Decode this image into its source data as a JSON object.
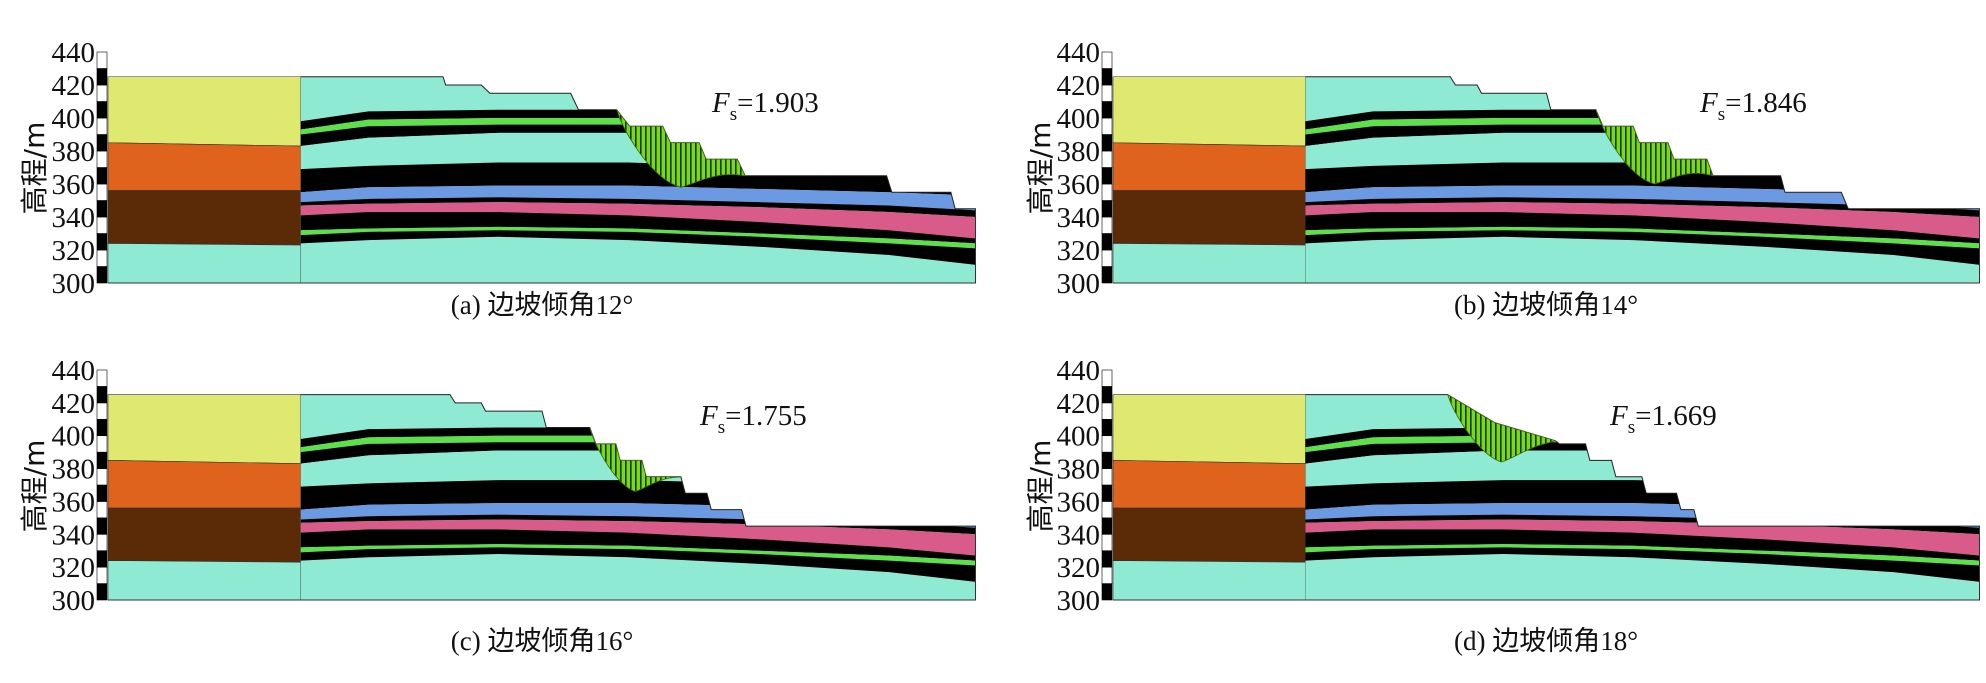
{
  "y_axis": {
    "label": "高程/m",
    "ticks": [
      "440",
      "420",
      "400",
      "380",
      "360",
      "340",
      "320",
      "300"
    ],
    "range": [
      300,
      440
    ]
  },
  "colors": {
    "fill_top": "#dfe96f",
    "fill_mid": "#df621d",
    "fill_low": "#5b2a07",
    "cyan": "#8eead3",
    "black": "#000000",
    "green": "#5ee04a",
    "blue": "#6c9ae2",
    "pink": "#d95b8a",
    "slip": "#78d81c"
  },
  "panels": [
    {
      "caption": "(a) 边坡倾角12°",
      "fs_symbol": "F",
      "fs_subscript": "s",
      "fs_equals": "=",
      "fs_value": "1.903"
    },
    {
      "caption": "(b) 边坡倾角14°",
      "fs_symbol": "F",
      "fs_subscript": "s",
      "fs_equals": "=",
      "fs_value": "1.846"
    },
    {
      "caption": "(c) 边坡倾角16°",
      "fs_symbol": "F",
      "fs_subscript": "s",
      "fs_equals": "=",
      "fs_value": "1.755"
    },
    {
      "caption": "(d) 边坡倾角18°",
      "fs_symbol": "F",
      "fs_subscript": "s",
      "fs_equals": "=",
      "fs_value": "1.669"
    }
  ]
}
